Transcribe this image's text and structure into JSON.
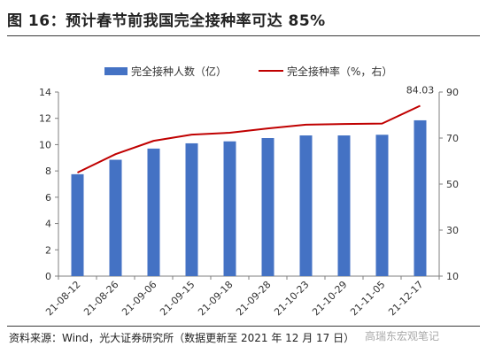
{
  "title": "图 16：预计春节前我国完全接种率可达 85%",
  "source": "资料来源：Wind，光大证券研究所（数据更新至 2021 年 12 月 17 日）",
  "watermark": "高瑞东宏观笔记",
  "colors": {
    "bar": "#4472C4",
    "line": "#C00000",
    "axis": "#7f7f7f",
    "text": "#333333"
  },
  "chart_data": {
    "type": "bar",
    "title": "",
    "categories": [
      "21-08-12",
      "21-08-26",
      "21-09-06",
      "21-09-15",
      "21-09-18",
      "21-09-28",
      "21-10-23",
      "21-10-29",
      "21-11-05",
      "21-12-17"
    ],
    "series": [
      {
        "name": "完全接种人数（亿）",
        "type": "bar",
        "axis": "left",
        "values": [
          7.75,
          8.85,
          9.7,
          10.1,
          10.25,
          10.5,
          10.7,
          10.7,
          10.75,
          11.85
        ]
      },
      {
        "name": "完全接种率（%，右）",
        "type": "line",
        "axis": "right",
        "values": [
          55,
          63,
          68.8,
          71.5,
          72.3,
          74.2,
          75.8,
          76.1,
          76.3,
          84.03
        ],
        "label_last": "84.03"
      }
    ],
    "y_left": {
      "min": 0,
      "max": 14,
      "ticks": [
        0,
        2,
        4,
        6,
        8,
        10,
        12,
        14
      ]
    },
    "y_right": {
      "min": 10,
      "max": 90,
      "ticks": [
        10,
        30,
        50,
        70,
        90
      ]
    },
    "legend_position": "top",
    "grid": false
  }
}
